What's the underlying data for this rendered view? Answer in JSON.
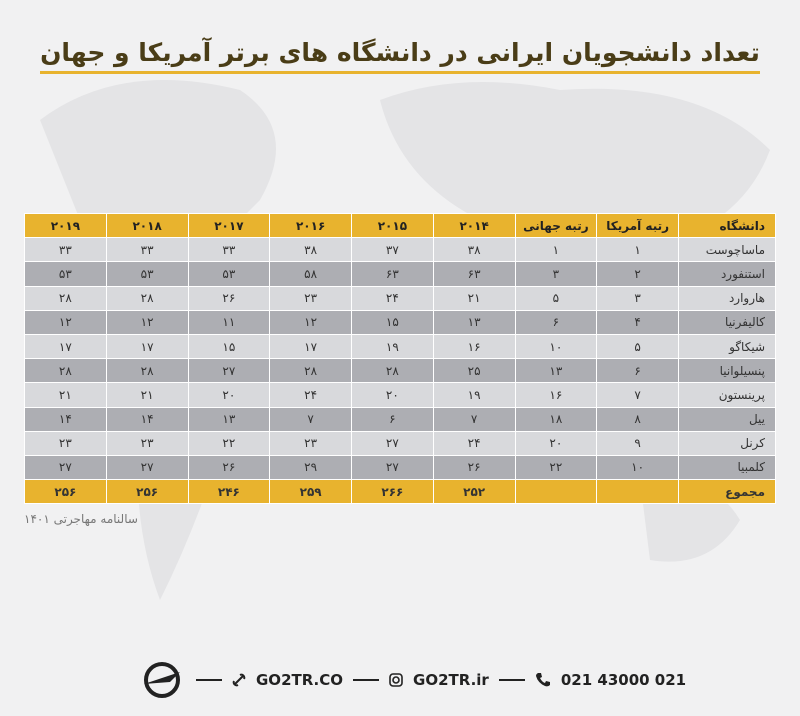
{
  "header": {
    "title": "تعداد دانشجویان ایرانی در دانشگاه های برتر آمریکا و جهان"
  },
  "table": {
    "columns": [
      "دانشگاه",
      "رتبه آمریکا",
      "رتبه جهانی",
      "۲۰۱۴",
      "۲۰۱۵",
      "۲۰۱۶",
      "۲۰۱۷",
      "۲۰۱۸",
      "۲۰۱۹"
    ],
    "rows": [
      [
        "ماساچوست",
        "۱",
        "۱",
        "۳۸",
        "۳۷",
        "۳۸",
        "۳۳",
        "۳۳",
        "۳۳"
      ],
      [
        "استنفورد",
        "۲",
        "۳",
        "۶۳",
        "۶۳",
        "۵۸",
        "۵۳",
        "۵۳",
        "۵۳"
      ],
      [
        "هاروارد",
        "۳",
        "۵",
        "۲۱",
        "۲۴",
        "۲۳",
        "۲۶",
        "۲۸",
        "۲۸"
      ],
      [
        "کالیفرنیا",
        "۴",
        "۶",
        "۱۳",
        "۱۵",
        "۱۲",
        "۱۱",
        "۱۲",
        "۱۲"
      ],
      [
        "شیکاگو",
        "۵",
        "۱۰",
        "۱۶",
        "۱۹",
        "۱۷",
        "۱۵",
        "۱۷",
        "۱۷"
      ],
      [
        "پنسیلوانیا",
        "۶",
        "۱۳",
        "۲۵",
        "۲۸",
        "۲۸",
        "۲۷",
        "۲۸",
        "۲۸"
      ],
      [
        "پرینستون",
        "۷",
        "۱۶",
        "۱۹",
        "۲۰",
        "۲۴",
        "۲۰",
        "۲۱",
        "۲۱"
      ],
      [
        "ییل",
        "۸",
        "۱۸",
        "۷",
        "۶",
        "۷",
        "۱۳",
        "۱۴",
        "۱۴"
      ],
      [
        "کرنل",
        "۹",
        "۲۰",
        "۲۴",
        "۲۷",
        "۲۳",
        "۲۲",
        "۲۳",
        "۲۳"
      ],
      [
        "کلمبیا",
        "۱۰",
        "۲۲",
        "۲۶",
        "۲۷",
        "۲۹",
        "۲۶",
        "۲۷",
        "۲۷"
      ]
    ],
    "total": {
      "label": "مجموع",
      "values": [
        "۲۵۲",
        "۲۶۶",
        "۲۵۹",
        "۲۴۶",
        "۲۵۶",
        "۲۵۶"
      ]
    }
  },
  "source": "سالنامه مهاجرتی ۱۴۰۱",
  "footer": {
    "website": "GO2TR.CO",
    "instagram": "GO2TR.ir",
    "phone": "021 43000 021"
  }
}
